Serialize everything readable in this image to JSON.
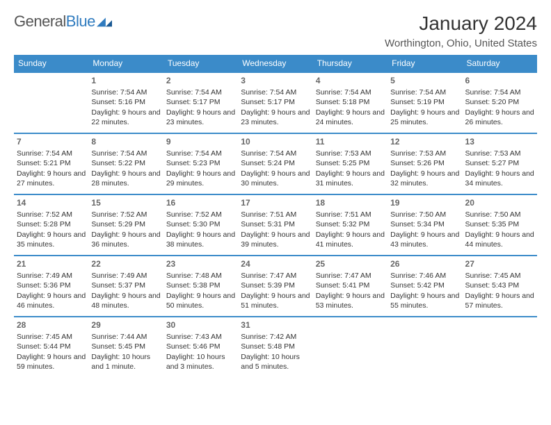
{
  "brand": {
    "word1": "General",
    "word2": "Blue"
  },
  "title": "January 2024",
  "location": "Worthington, Ohio, United States",
  "colors": {
    "header_bg": "#3b8bc9",
    "header_text": "#ffffff",
    "row_border": "#3b8bc9",
    "brand_gray": "#555555",
    "brand_blue": "#2f7bbf",
    "text": "#333333",
    "daynum": "#666666"
  },
  "weekdays": [
    "Sunday",
    "Monday",
    "Tuesday",
    "Wednesday",
    "Thursday",
    "Friday",
    "Saturday"
  ],
  "first_weekday_index": 1,
  "days": [
    {
      "n": 1,
      "sunrise": "7:54 AM",
      "sunset": "5:16 PM",
      "daylight": "9 hours and 22 minutes."
    },
    {
      "n": 2,
      "sunrise": "7:54 AM",
      "sunset": "5:17 PM",
      "daylight": "9 hours and 23 minutes."
    },
    {
      "n": 3,
      "sunrise": "7:54 AM",
      "sunset": "5:17 PM",
      "daylight": "9 hours and 23 minutes."
    },
    {
      "n": 4,
      "sunrise": "7:54 AM",
      "sunset": "5:18 PM",
      "daylight": "9 hours and 24 minutes."
    },
    {
      "n": 5,
      "sunrise": "7:54 AM",
      "sunset": "5:19 PM",
      "daylight": "9 hours and 25 minutes."
    },
    {
      "n": 6,
      "sunrise": "7:54 AM",
      "sunset": "5:20 PM",
      "daylight": "9 hours and 26 minutes."
    },
    {
      "n": 7,
      "sunrise": "7:54 AM",
      "sunset": "5:21 PM",
      "daylight": "9 hours and 27 minutes."
    },
    {
      "n": 8,
      "sunrise": "7:54 AM",
      "sunset": "5:22 PM",
      "daylight": "9 hours and 28 minutes."
    },
    {
      "n": 9,
      "sunrise": "7:54 AM",
      "sunset": "5:23 PM",
      "daylight": "9 hours and 29 minutes."
    },
    {
      "n": 10,
      "sunrise": "7:54 AM",
      "sunset": "5:24 PM",
      "daylight": "9 hours and 30 minutes."
    },
    {
      "n": 11,
      "sunrise": "7:53 AM",
      "sunset": "5:25 PM",
      "daylight": "9 hours and 31 minutes."
    },
    {
      "n": 12,
      "sunrise": "7:53 AM",
      "sunset": "5:26 PM",
      "daylight": "9 hours and 32 minutes."
    },
    {
      "n": 13,
      "sunrise": "7:53 AM",
      "sunset": "5:27 PM",
      "daylight": "9 hours and 34 minutes."
    },
    {
      "n": 14,
      "sunrise": "7:52 AM",
      "sunset": "5:28 PM",
      "daylight": "9 hours and 35 minutes."
    },
    {
      "n": 15,
      "sunrise": "7:52 AM",
      "sunset": "5:29 PM",
      "daylight": "9 hours and 36 minutes."
    },
    {
      "n": 16,
      "sunrise": "7:52 AM",
      "sunset": "5:30 PM",
      "daylight": "9 hours and 38 minutes."
    },
    {
      "n": 17,
      "sunrise": "7:51 AM",
      "sunset": "5:31 PM",
      "daylight": "9 hours and 39 minutes."
    },
    {
      "n": 18,
      "sunrise": "7:51 AM",
      "sunset": "5:32 PM",
      "daylight": "9 hours and 41 minutes."
    },
    {
      "n": 19,
      "sunrise": "7:50 AM",
      "sunset": "5:34 PM",
      "daylight": "9 hours and 43 minutes."
    },
    {
      "n": 20,
      "sunrise": "7:50 AM",
      "sunset": "5:35 PM",
      "daylight": "9 hours and 44 minutes."
    },
    {
      "n": 21,
      "sunrise": "7:49 AM",
      "sunset": "5:36 PM",
      "daylight": "9 hours and 46 minutes."
    },
    {
      "n": 22,
      "sunrise": "7:49 AM",
      "sunset": "5:37 PM",
      "daylight": "9 hours and 48 minutes."
    },
    {
      "n": 23,
      "sunrise": "7:48 AM",
      "sunset": "5:38 PM",
      "daylight": "9 hours and 50 minutes."
    },
    {
      "n": 24,
      "sunrise": "7:47 AM",
      "sunset": "5:39 PM",
      "daylight": "9 hours and 51 minutes."
    },
    {
      "n": 25,
      "sunrise": "7:47 AM",
      "sunset": "5:41 PM",
      "daylight": "9 hours and 53 minutes."
    },
    {
      "n": 26,
      "sunrise": "7:46 AM",
      "sunset": "5:42 PM",
      "daylight": "9 hours and 55 minutes."
    },
    {
      "n": 27,
      "sunrise": "7:45 AM",
      "sunset": "5:43 PM",
      "daylight": "9 hours and 57 minutes."
    },
    {
      "n": 28,
      "sunrise": "7:45 AM",
      "sunset": "5:44 PM",
      "daylight": "9 hours and 59 minutes."
    },
    {
      "n": 29,
      "sunrise": "7:44 AM",
      "sunset": "5:45 PM",
      "daylight": "10 hours and 1 minute."
    },
    {
      "n": 30,
      "sunrise": "7:43 AM",
      "sunset": "5:46 PM",
      "daylight": "10 hours and 3 minutes."
    },
    {
      "n": 31,
      "sunrise": "7:42 AM",
      "sunset": "5:48 PM",
      "daylight": "10 hours and 5 minutes."
    }
  ],
  "labels": {
    "sunrise": "Sunrise:",
    "sunset": "Sunset:",
    "daylight": "Daylight:"
  }
}
